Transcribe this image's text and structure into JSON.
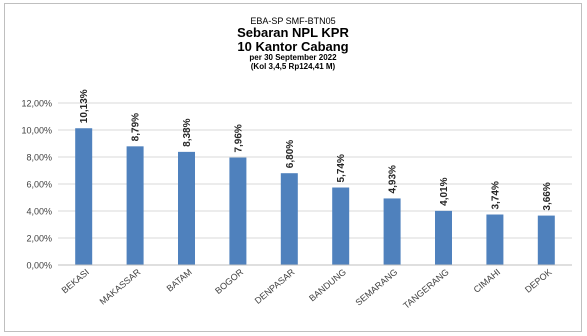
{
  "chart_data": {
    "type": "bar",
    "title_lines": [
      "EBA-SP  SMF-BTN05",
      "Sebaran NPL KPR",
      "10 Kantor Cabang",
      "per 30  September 2022",
      "(Kol 3,4,5 Rp124,41  M)"
    ],
    "categories": [
      "BEKASI",
      "MAKASSAR",
      "BATAM",
      "BOGOR",
      "DENPASAR",
      "BANDUNG",
      "SEMARANG",
      "TANGERANG",
      "CIMAHI",
      "DEPOK"
    ],
    "values": [
      10.13,
      8.79,
      8.38,
      7.96,
      6.8,
      5.74,
      4.93,
      4.01,
      3.74,
      3.66
    ],
    "value_labels": [
      "10,13%",
      "8,79%",
      "8,38%",
      "7,96%",
      "6,80%",
      "5,74%",
      "4,93%",
      "4,01%",
      "3,74%",
      "3,66%"
    ],
    "ylim": [
      0,
      12
    ],
    "yticks": [
      0,
      2,
      4,
      6,
      8,
      10,
      12
    ],
    "ytick_labels": [
      "0,00%",
      "2,00%",
      "4,00%",
      "6,00%",
      "8,00%",
      "10,00%",
      "12,00%"
    ],
    "grid": true,
    "bar_color": "#4f81bd",
    "grid_color": "#d9d9d9"
  }
}
